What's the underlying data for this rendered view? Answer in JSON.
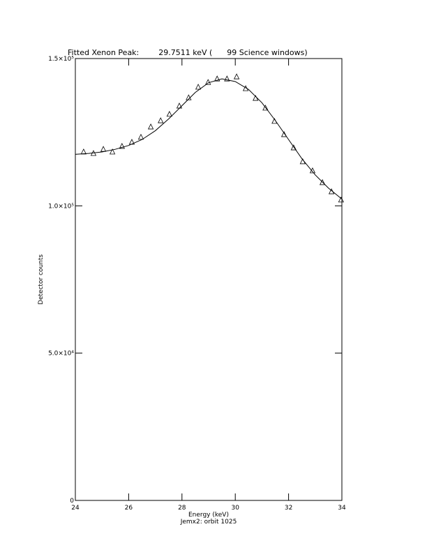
{
  "chart_data": {
    "type": "scatter",
    "title": "Fitted Xenon Peak:        29.7511 keV (      99 Science windows)",
    "x_label": "Energy (keV)",
    "subtitle": "Jemx2: orbit 1025",
    "y_label": "Detector counts",
    "xlim": [
      24,
      34
    ],
    "xticks": [
      24,
      26,
      28,
      30,
      32,
      34
    ],
    "ylim": [
      0,
      150000
    ],
    "yticks": [
      0,
      {
        "value": 50000,
        "label": "5.0×10⁴"
      },
      {
        "value": 100000,
        "label": "1.0×10⁵"
      },
      {
        "value": 150000,
        "label": "1.5×10⁵"
      }
    ],
    "color": "#000000",
    "series": [
      {
        "marker": "triangle",
        "x": [
          24.31,
          24.68,
          25.05,
          25.39,
          25.75,
          26.12,
          26.46,
          26.83,
          27.2,
          27.53,
          27.9,
          28.25,
          28.61,
          28.98,
          29.32,
          29.69,
          30.05,
          30.39,
          30.76,
          31.13,
          31.47,
          31.83,
          32.19,
          32.53,
          32.9,
          33.27,
          33.61,
          33.97
        ],
        "values": [
          118300,
          117800,
          119200,
          118300,
          120200,
          121600,
          123300,
          126800,
          128900,
          131100,
          133900,
          136700,
          140300,
          141900,
          143100,
          143100,
          143800,
          139800,
          136500,
          133200,
          128700,
          124200,
          119700,
          115000,
          111900,
          107900,
          104800,
          102000
        ]
      },
      {
        "marker": "line",
        "x": [
          24,
          24.5,
          25,
          25.5,
          26,
          26.5,
          27,
          27.5,
          28,
          28.5,
          29,
          29.5,
          30,
          30.5,
          31,
          31.5,
          32,
          32.5,
          33,
          33.5,
          34
        ],
        "values": [
          117500,
          117800,
          118300,
          119200,
          120500,
          122500,
          125500,
          129500,
          134000,
          138500,
          141800,
          143100,
          142200,
          139500,
          135000,
          129000,
          122500,
          116000,
          110500,
          106000,
          102300
        ]
      }
    ]
  }
}
